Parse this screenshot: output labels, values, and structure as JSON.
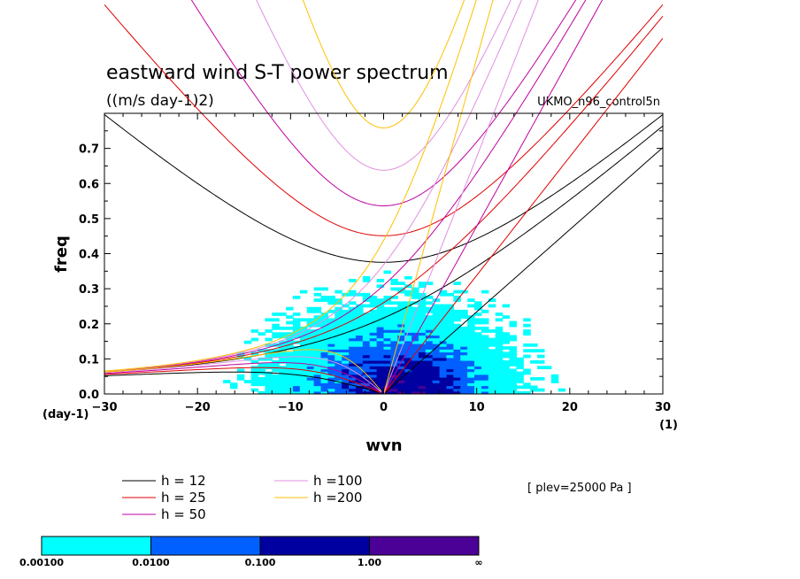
{
  "chart_data": {
    "type": "heatmap",
    "title": "eastward wind S-T power spectrum",
    "subtitle": "((m/s day-1)2)",
    "dataset": "UKMO_n96_control5n",
    "annotation": "[ plev=25000 Pa ]",
    "xlabel": "wvn",
    "ylabel": "freq",
    "x_units": "(1)",
    "y_units": "(day-1)",
    "xlim": [
      -30,
      30
    ],
    "ylim": [
      0,
      0.8
    ],
    "x_ticks": [
      -30,
      -20,
      -10,
      0,
      10,
      20,
      30
    ],
    "y_ticks": [
      0.0,
      0.1,
      0.2,
      0.3,
      0.4,
      0.5,
      0.6,
      0.7
    ],
    "contour_levels": [
      "0.00100",
      "0.0100",
      "0.100",
      "1.00",
      "∞"
    ],
    "colorbar_colors": [
      "#00ffff",
      "#0060ff",
      "#0000a0",
      "#4b0096"
    ],
    "dispersion_curves": [
      {
        "label": "h = 12",
        "color": "#000000"
      },
      {
        "label": "h = 25",
        "color": "#e00000"
      },
      {
        "label": "h = 50",
        "color": "#c000a0"
      },
      {
        "label": "h =100",
        "color": "#e090e0"
      },
      {
        "label": "h =200",
        "color": "#ffc000"
      }
    ]
  }
}
